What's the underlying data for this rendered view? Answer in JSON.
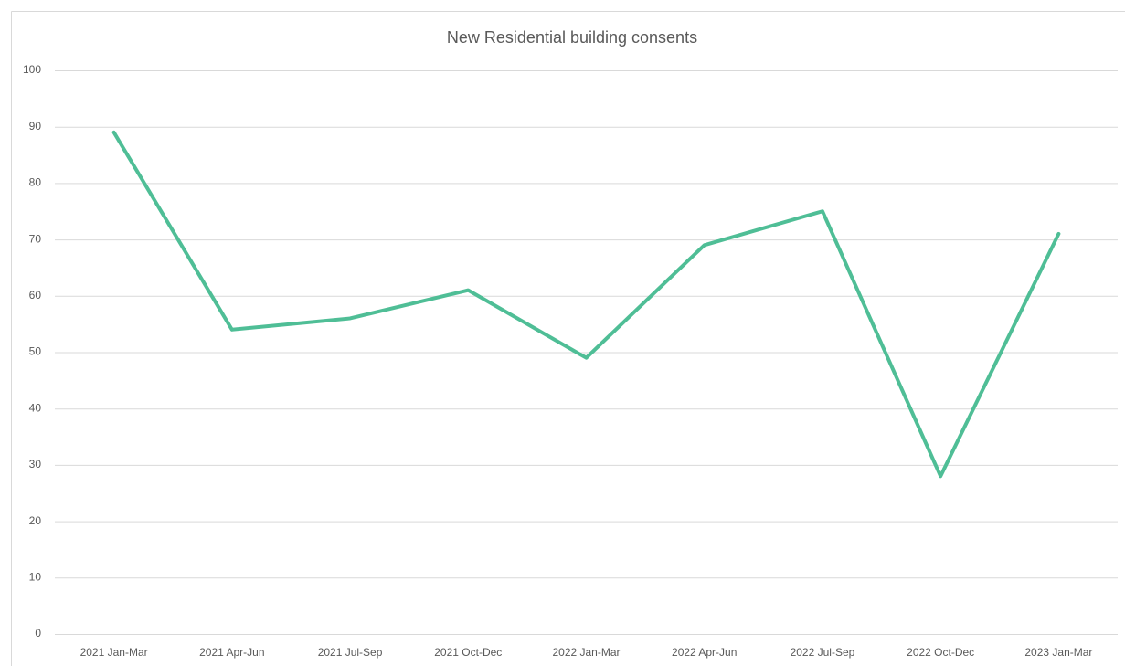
{
  "chart_data": {
    "type": "line",
    "title": "New Residential building consents",
    "categories": [
      "2021 Jan-Mar",
      "2021 Apr-Jun",
      "2021 Jul-Sep",
      "2021 Oct-Dec",
      "2022 Jan-Mar",
      "2022 Apr-Jun",
      "2022 Jul-Sep",
      "2022 Oct-Dec",
      "2023 Jan-Mar"
    ],
    "values": [
      89,
      54,
      56,
      61,
      49,
      69,
      75,
      28,
      71
    ],
    "color": "#4fbe96",
    "ylim": [
      0,
      100
    ],
    "yticks": [
      0,
      10,
      20,
      30,
      40,
      50,
      60,
      70,
      80,
      90,
      100
    ],
    "grid": true
  }
}
